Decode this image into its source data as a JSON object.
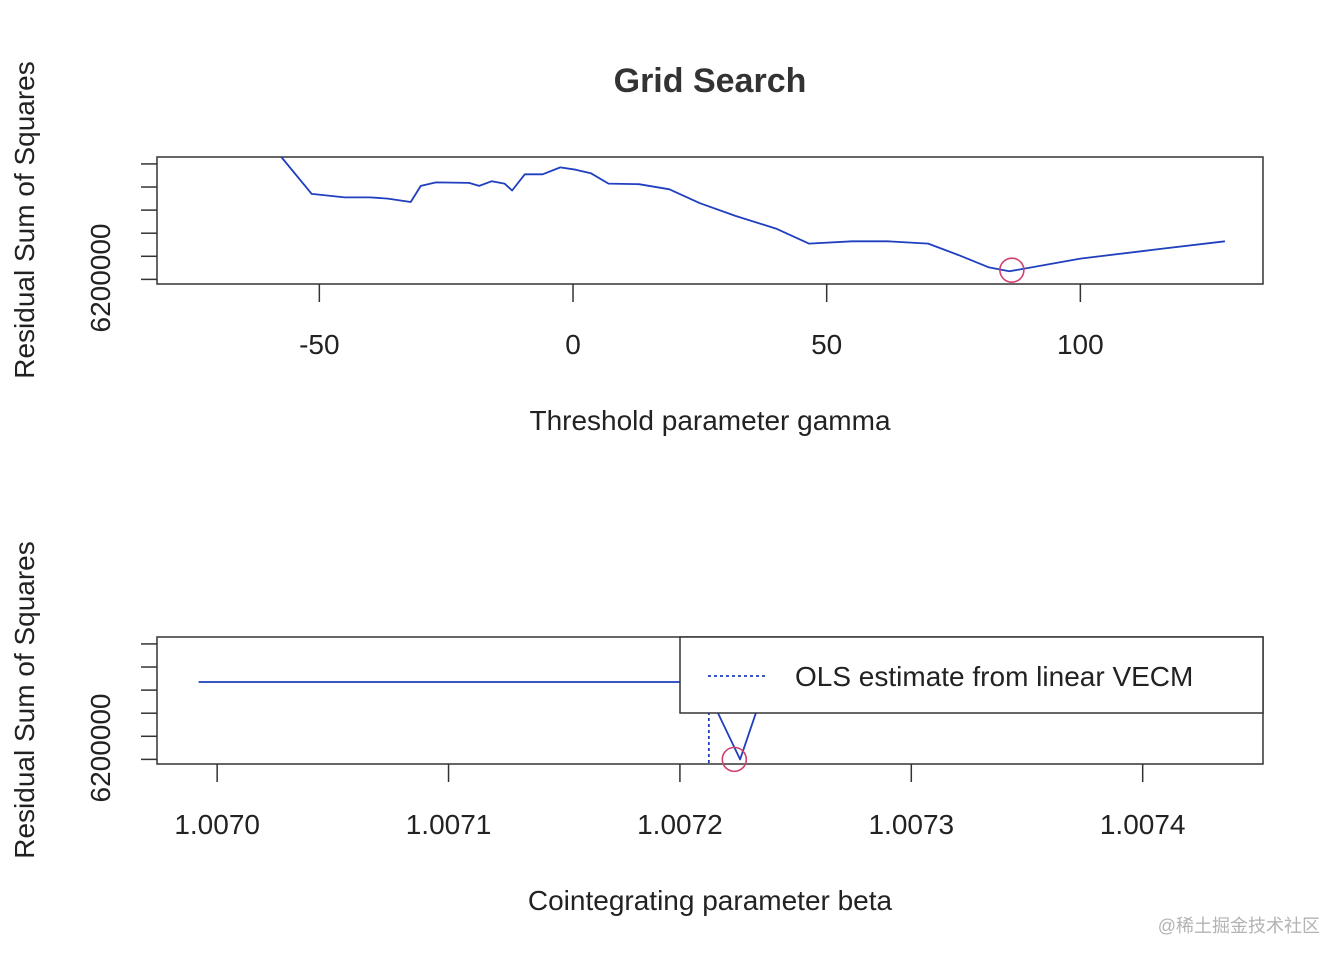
{
  "chart_data": [
    {
      "type": "line",
      "title": "Grid Search",
      "xlabel": "Threshold parameter gamma",
      "ylabel": "Residual Sum of Squares",
      "xlim": [
        -82,
        136
      ],
      "ylim": [
        6199500,
        6205000
      ],
      "xticks": [
        -50,
        0,
        50,
        100
      ],
      "xtick_labels": [
        "-50",
        "0",
        "50",
        "100"
      ],
      "yticks": [
        6199700,
        6200700,
        6201700,
        6202700,
        6203700,
        6204700
      ],
      "ytick_labels": [
        "6200000"
      ],
      "series_color": "#1f3fbf",
      "marker_color": "#d0406a",
      "x": [
        -57.5,
        -51.5,
        -45,
        -40,
        -36.5,
        -32,
        -30,
        -27,
        -20.5,
        -18.5,
        -16,
        -13.5,
        -12,
        -9.5,
        -6,
        -2.5,
        0.5,
        3.5,
        7,
        13,
        19,
        25,
        32,
        40,
        46.5,
        55,
        62,
        70,
        76,
        82,
        86,
        100,
        115,
        128.5
      ],
      "y": [
        6205000,
        6203400,
        6203250,
        6203250,
        6203200,
        6203050,
        6203750,
        6203900,
        6203880,
        6203750,
        6203950,
        6203850,
        6203550,
        6204250,
        6204250,
        6204550,
        6204450,
        6204300,
        6203850,
        6203820,
        6203600,
        6203000,
        6202450,
        6201900,
        6201250,
        6201350,
        6201350,
        6201250,
        6200750,
        6200220,
        6200050,
        6200600,
        6201000,
        6201350
      ],
      "minimum": {
        "x": 86.5,
        "y": 6200100
      }
    },
    {
      "type": "line",
      "title": "",
      "xlabel": "Cointegrating parameter beta",
      "ylabel": "Residual Sum of Squares",
      "xlim": [
        1.006974,
        1.007452
      ],
      "ylim": [
        6199500,
        6205000
      ],
      "xticks": [
        1.007,
        1.0071,
        1.0072,
        1.0073,
        1.0074
      ],
      "xtick_labels": [
        "1.0070",
        "1.0071",
        "1.0072",
        "1.0073",
        "1.0074"
      ],
      "yticks": [
        6199700,
        6200700,
        6201700,
        6202700,
        6203700,
        6204700
      ],
      "ytick_labels": [
        "6200000"
      ],
      "series_color": "#1f3fbf",
      "marker_color": "#d0406a",
      "x": [
        1.006992,
        1.00721,
        1.007226,
        1.007234
      ],
      "y": [
        6203050,
        6203050,
        6199700,
        6202050
      ],
      "minimum": {
        "x": 1.0072235,
        "y": 6199700
      },
      "ols_estimate": 1.0072125,
      "legend": {
        "position": "top-right",
        "entries": [
          "OLS estimate from linear VECM"
        ]
      }
    }
  ],
  "watermark": "@稀土掘金技术社区"
}
